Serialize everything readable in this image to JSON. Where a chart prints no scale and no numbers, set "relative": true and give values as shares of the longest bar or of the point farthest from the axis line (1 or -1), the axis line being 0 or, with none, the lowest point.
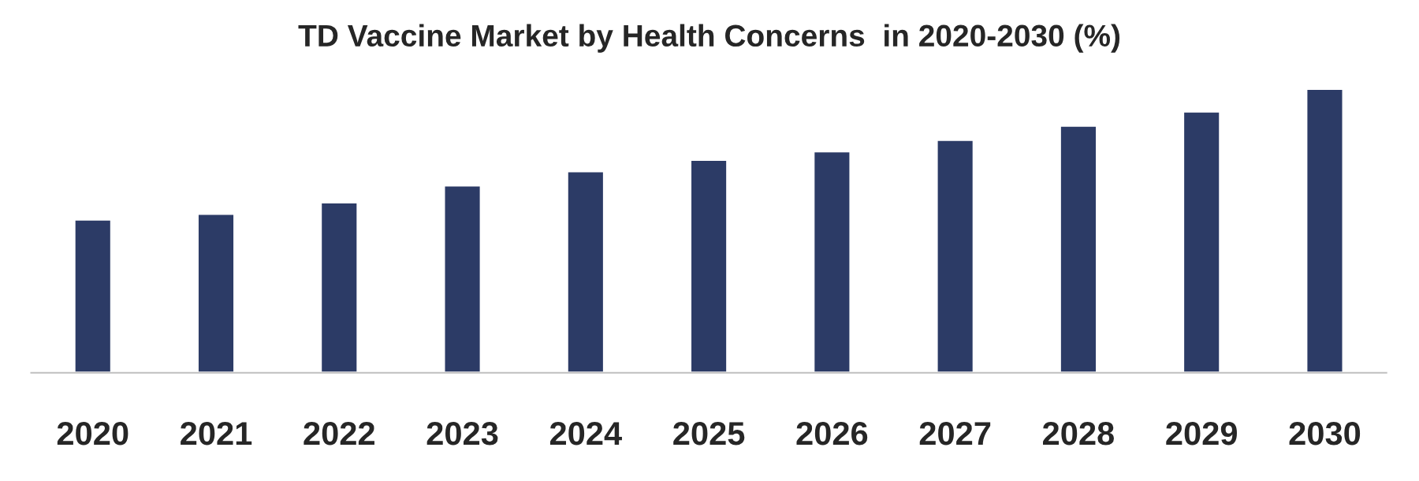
{
  "chart_data": {
    "type": "bar",
    "title": "TD Vaccine Market by Health Concerns  in 2020-2030 (%)",
    "categories": [
      "2020",
      "2021",
      "2022",
      "2023",
      "2024",
      "2025",
      "2026",
      "2027",
      "2028",
      "2029",
      "2030"
    ],
    "values": [
      0.54,
      0.56,
      0.6,
      0.66,
      0.71,
      0.75,
      0.78,
      0.82,
      0.87,
      0.92,
      1
    ],
    "color": "#2c3b66",
    "relative": true,
    "grid": false,
    "legend": false
  }
}
